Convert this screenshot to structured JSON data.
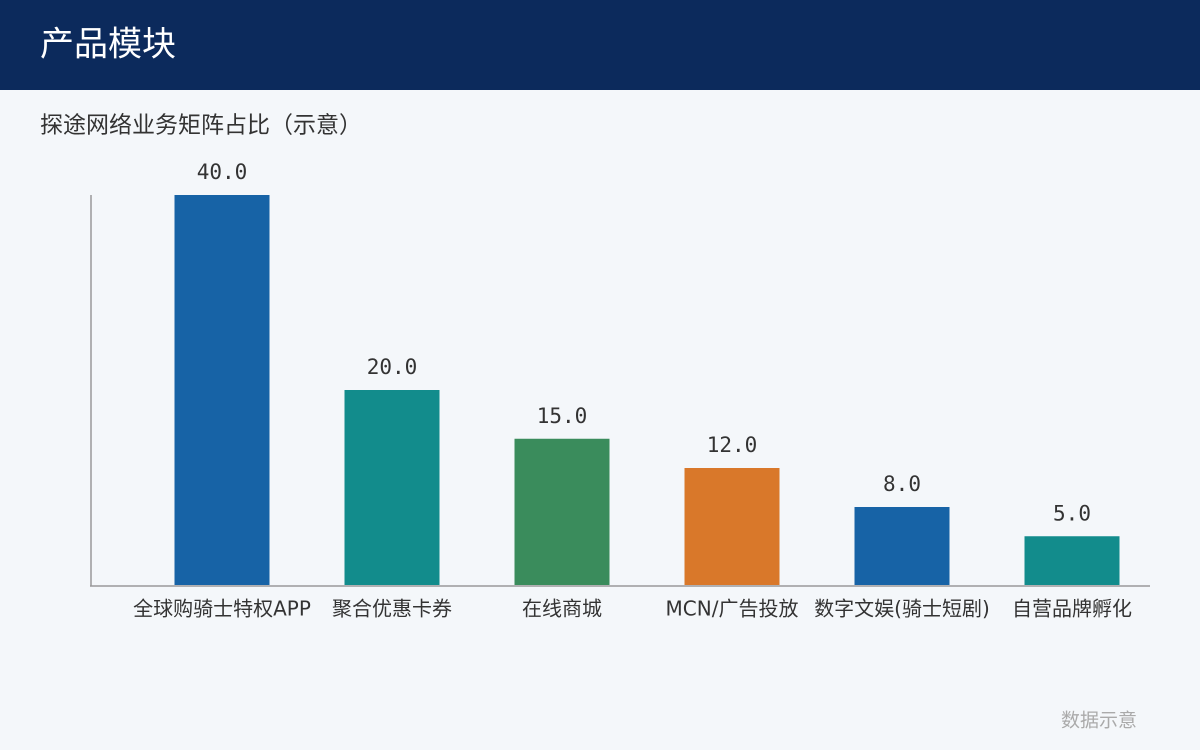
{
  "header": {
    "title": "产品模块"
  },
  "chart_data": {
    "type": "bar",
    "title": "探途网络业务矩阵占比（示意）",
    "categories": [
      "全球购骑士特权APP",
      "聚合优惠卡券",
      "在线商城",
      "MCN/广告投放",
      "数字文娱(骑士短剧)",
      "自营品牌孵化"
    ],
    "values": [
      40,
      20,
      15,
      12,
      8,
      5
    ],
    "value_labels": [
      "40.0",
      "20.0",
      "15.0",
      "12.0",
      "8.0",
      "5.0"
    ],
    "colors": [
      "#1763a6",
      "#128c8c",
      "#3a8c5c",
      "#d9782a",
      "#1763a6",
      "#128c8c"
    ],
    "ylim": [
      0,
      40
    ]
  },
  "footer": {
    "note": "数据示意"
  }
}
